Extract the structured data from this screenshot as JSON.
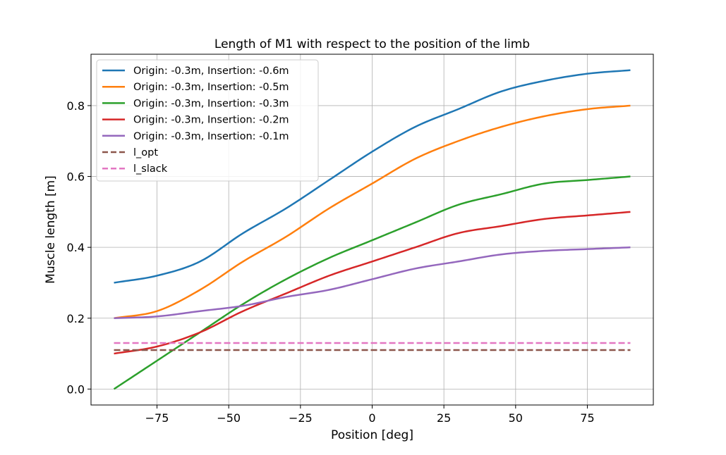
{
  "chart_data": {
    "type": "line",
    "title": "Length of M1 with respect to the position of the limb",
    "xlabel": "Position [deg]",
    "ylabel": "Muscle length [m]",
    "xlim": [
      -98,
      98
    ],
    "ylim": [
      -0.045,
      0.945
    ],
    "xticks": [
      -75,
      -50,
      -25,
      0,
      25,
      50,
      75
    ],
    "xtick_labels": [
      "−75",
      "−50",
      "−25",
      "0",
      "25",
      "50",
      "75"
    ],
    "yticks": [
      0.0,
      0.2,
      0.4,
      0.6,
      0.8
    ],
    "ytick_labels": [
      "0.0",
      "0.2",
      "0.4",
      "0.6",
      "0.8"
    ],
    "grid": true,
    "legend_position": "upper-left",
    "x_range": [
      -90,
      90
    ],
    "series": [
      {
        "name": "Origin: -0.3m, Insertion: -0.6m",
        "color": "#1f77b4",
        "dash": false,
        "x": [
          -90,
          -75,
          -60,
          -45,
          -30,
          -15,
          0,
          15,
          30,
          45,
          60,
          75,
          90
        ],
        "y": [
          0.3,
          0.32,
          0.36,
          0.44,
          0.51,
          0.59,
          0.67,
          0.74,
          0.79,
          0.84,
          0.87,
          0.89,
          0.9
        ]
      },
      {
        "name": "Origin: -0.3m, Insertion: -0.5m",
        "color": "#ff7f0e",
        "dash": false,
        "x": [
          -90,
          -75,
          -60,
          -45,
          -30,
          -15,
          0,
          15,
          30,
          45,
          60,
          75,
          90
        ],
        "y": [
          0.2,
          0.22,
          0.28,
          0.36,
          0.43,
          0.51,
          0.58,
          0.65,
          0.7,
          0.74,
          0.77,
          0.79,
          0.8
        ]
      },
      {
        "name": "Origin: -0.3m, Insertion: -0.3m",
        "color": "#2ca02c",
        "dash": false,
        "x": [
          -90,
          -75,
          -60,
          -45,
          -30,
          -15,
          0,
          15,
          30,
          45,
          60,
          75,
          90
        ],
        "y": [
          0.0,
          0.08,
          0.16,
          0.24,
          0.31,
          0.37,
          0.42,
          0.47,
          0.52,
          0.55,
          0.58,
          0.59,
          0.6
        ]
      },
      {
        "name": "Origin: -0.3m, Insertion: -0.2m",
        "color": "#d62728",
        "dash": false,
        "x": [
          -90,
          -75,
          -60,
          -45,
          -30,
          -15,
          0,
          15,
          30,
          45,
          60,
          75,
          90
        ],
        "y": [
          0.1,
          0.12,
          0.16,
          0.22,
          0.27,
          0.32,
          0.36,
          0.4,
          0.44,
          0.46,
          0.48,
          0.49,
          0.5
        ]
      },
      {
        "name": "Origin: -0.3m, Insertion: -0.1m",
        "color": "#9467bd",
        "dash": false,
        "x": [
          -90,
          -75,
          -60,
          -45,
          -30,
          -15,
          0,
          15,
          30,
          45,
          60,
          75,
          90
        ],
        "y": [
          0.2,
          0.205,
          0.22,
          0.235,
          0.26,
          0.28,
          0.31,
          0.34,
          0.36,
          0.38,
          0.39,
          0.395,
          0.4
        ]
      },
      {
        "name": "l_opt",
        "color": "#8c564b",
        "dash": true,
        "x": [
          -90,
          90
        ],
        "y": [
          0.11,
          0.11
        ]
      },
      {
        "name": "l_slack",
        "color": "#e377c2",
        "dash": true,
        "x": [
          -90,
          90
        ],
        "y": [
          0.13,
          0.13
        ]
      }
    ]
  }
}
